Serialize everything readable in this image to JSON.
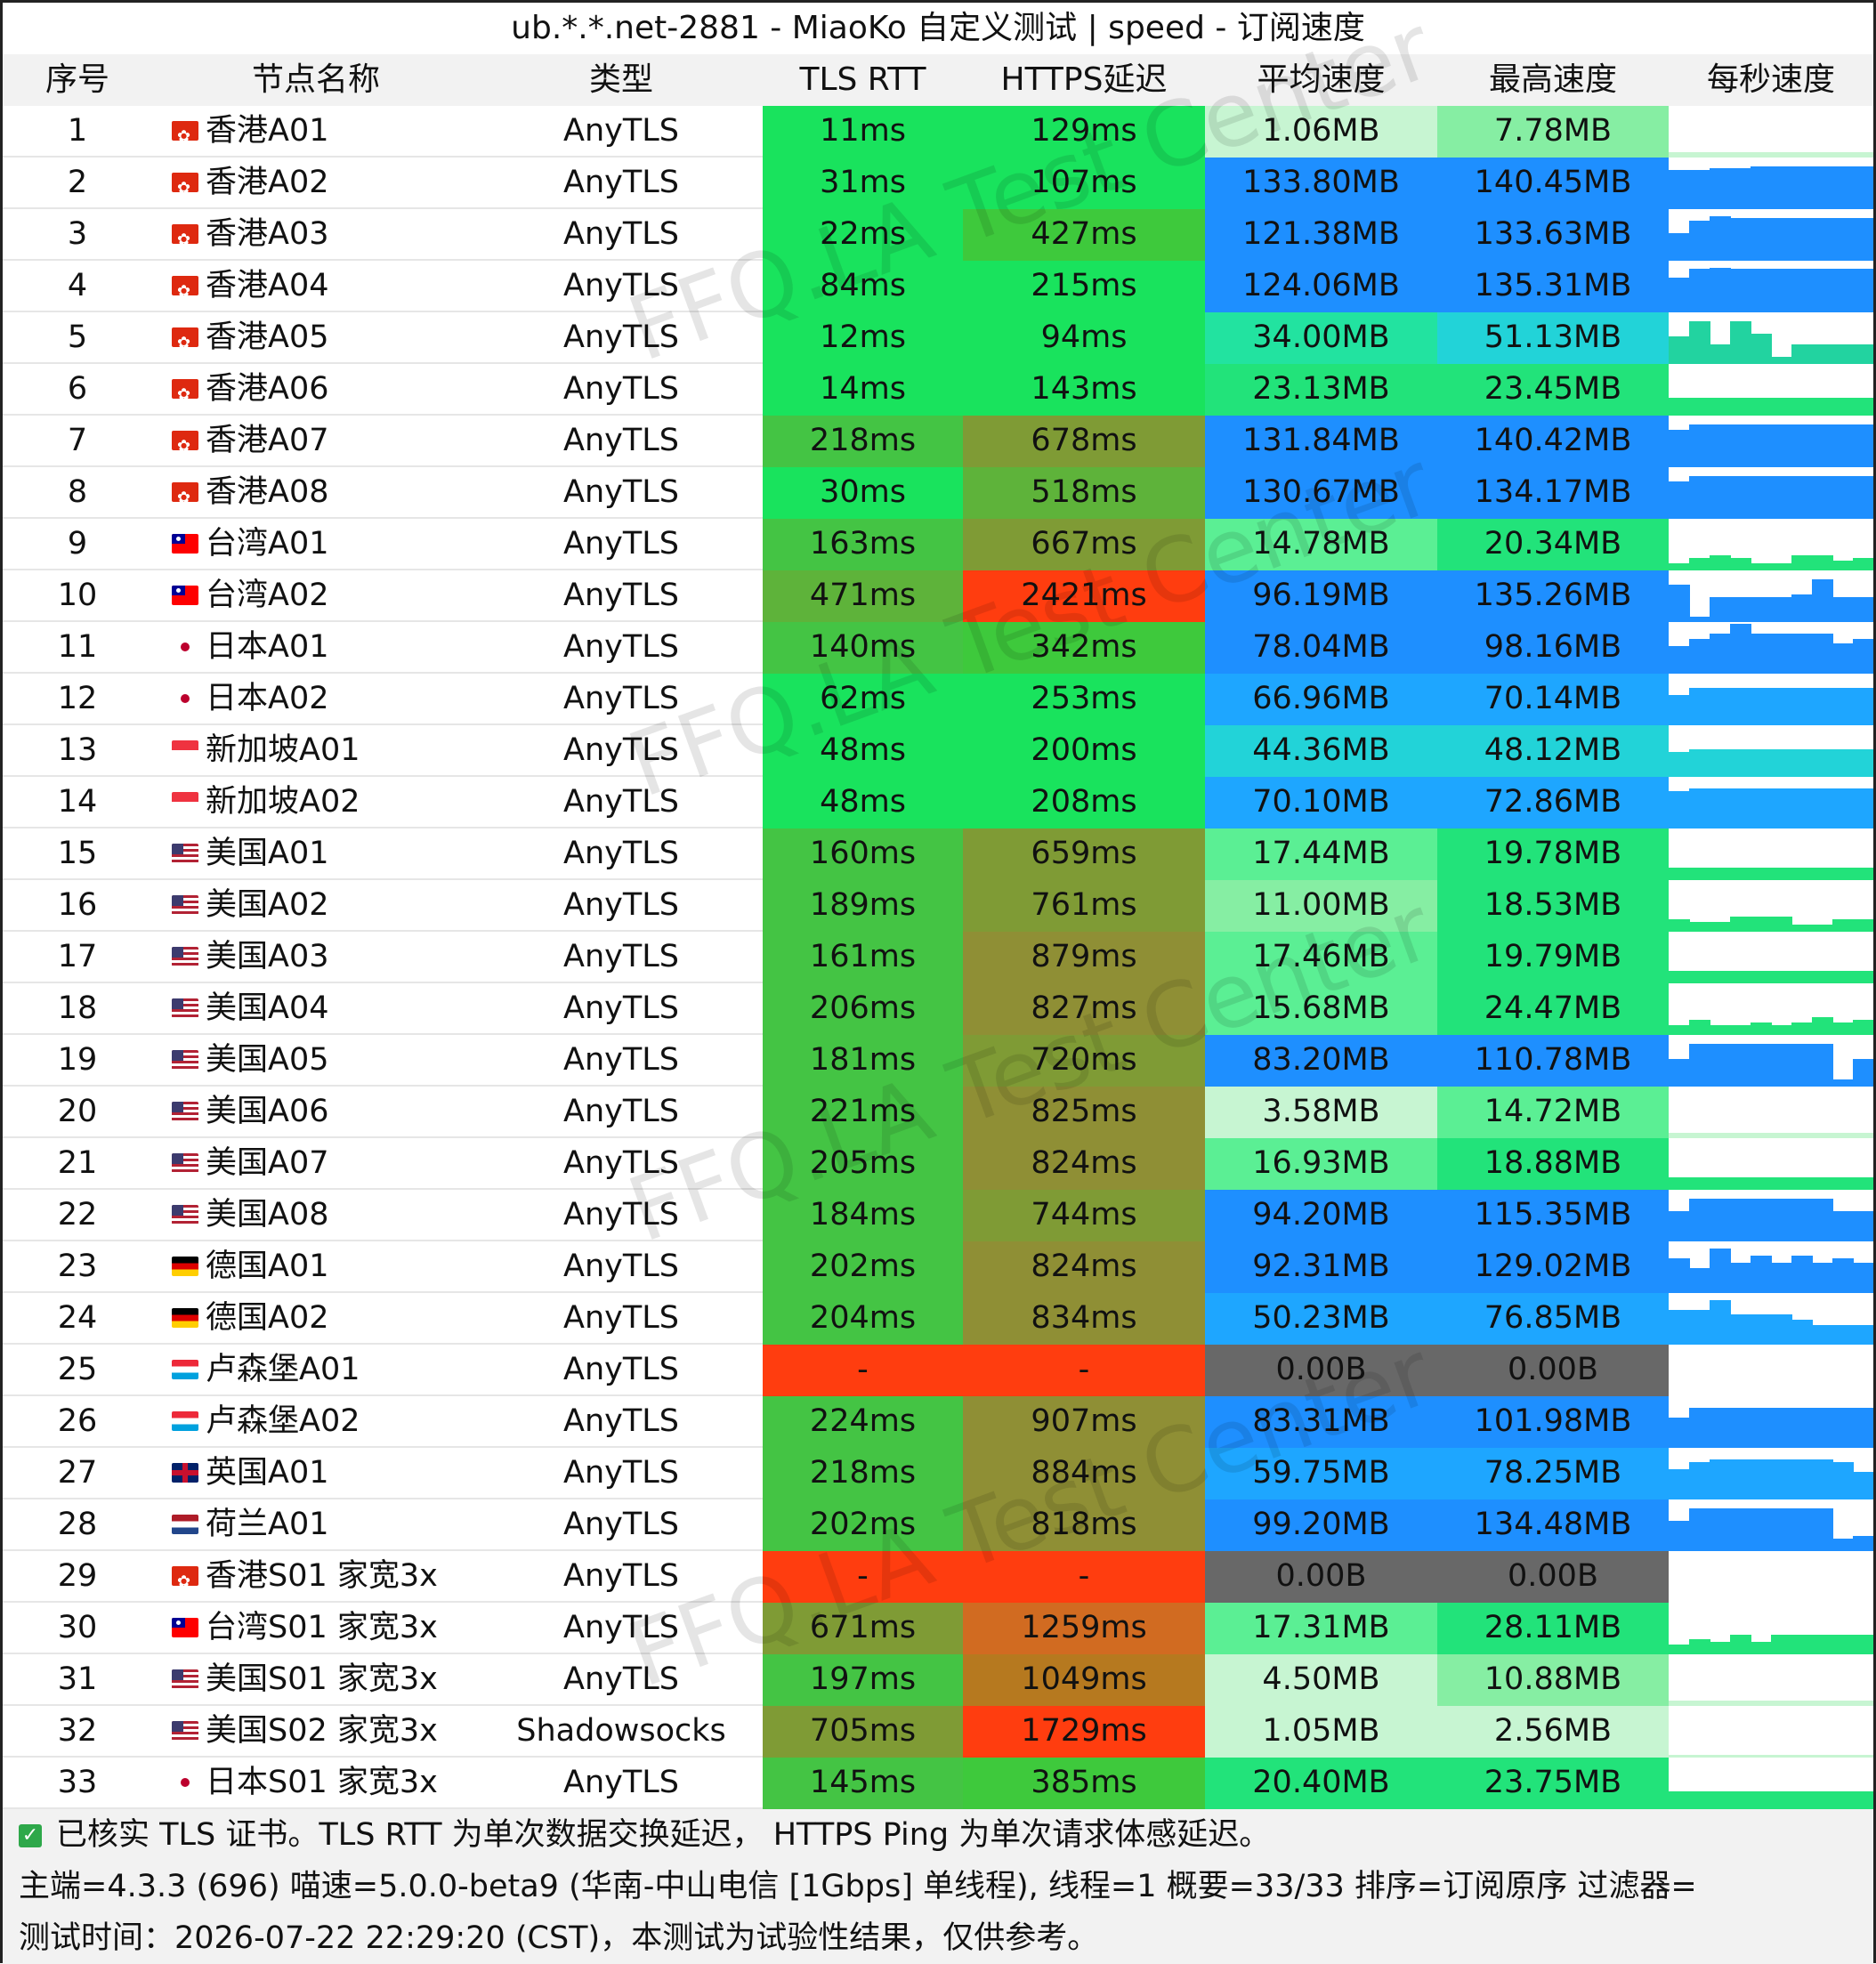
{
  "title": "ub.*.*.net-2881 - MiaoKo 自定义测试 | speed - 订阅速度",
  "columns": [
    "序号",
    "节点名称",
    "类型",
    "TLS RTT",
    "HTTPS延迟",
    "平均速度",
    "最高速度",
    "每秒速度"
  ],
  "rows": [
    {
      "idx": "1",
      "flag": "hk",
      "name": "香港A01",
      "type": "AnyTLS",
      "rtt": "11ms",
      "ping": "129ms",
      "avg": "1.06MB",
      "max": "7.78MB",
      "rtt_color": "#19e35d",
      "ping_color": "#19e35d",
      "avg_color": "#c7f5d2",
      "max_color": "#86eea3",
      "spark": [
        0.1,
        0.1,
        0.1,
        0.1,
        0.1,
        0.1,
        0.1,
        0.1,
        0.1,
        0.1
      ],
      "spark_color": "#c7f5d2"
    },
    {
      "idx": "2",
      "flag": "hk",
      "name": "香港A02",
      "type": "AnyTLS",
      "rtt": "31ms",
      "ping": "107ms",
      "avg": "133.80MB",
      "max": "140.45MB",
      "rtt_color": "#19e35d",
      "ping_color": "#19e35d",
      "avg_color": "#1e8fff",
      "max_color": "#1e8fff",
      "spark": [
        0.78,
        0.78,
        0.82,
        0.82,
        0.85,
        0.85,
        0.85,
        0.85,
        0.85,
        0.85
      ],
      "spark_color": "#1e8fff"
    },
    {
      "idx": "3",
      "flag": "hk",
      "name": "香港A03",
      "type": "AnyTLS",
      "rtt": "22ms",
      "ping": "427ms",
      "avg": "121.38MB",
      "max": "133.63MB",
      "rtt_color": "#19e35d",
      "ping_color": "#3ec93c",
      "avg_color": "#1e8fff",
      "max_color": "#1e8fff",
      "spark": [
        0.55,
        0.8,
        0.9,
        0.85,
        0.85,
        0.85,
        0.85,
        0.85,
        0.85,
        0.85
      ],
      "spark_color": "#1e8fff"
    },
    {
      "idx": "4",
      "flag": "hk",
      "name": "香港A04",
      "type": "AnyTLS",
      "rtt": "84ms",
      "ping": "215ms",
      "avg": "124.06MB",
      "max": "135.31MB",
      "rtt_color": "#19e35d",
      "ping_color": "#19e35d",
      "avg_color": "#1e8fff",
      "max_color": "#1e8fff",
      "spark": [
        0.7,
        0.88,
        0.9,
        0.88,
        0.88,
        0.88,
        0.88,
        0.88,
        0.88,
        0.88
      ],
      "spark_color": "#1e8fff"
    },
    {
      "idx": "5",
      "flag": "hk",
      "name": "香港A05",
      "type": "AnyTLS",
      "rtt": "12ms",
      "ping": "94ms",
      "avg": "34.00MB",
      "max": "51.13MB",
      "rtt_color": "#19e35d",
      "ping_color": "#19e35d",
      "avg_color": "#22e3a0",
      "max_color": "#22d3d8",
      "spark": [
        0.55,
        0.85,
        0.4,
        0.85,
        0.6,
        0.15,
        0.4,
        0.4,
        0.4,
        0.4
      ],
      "spark_color": "#22d3a0"
    },
    {
      "idx": "6",
      "flag": "hk",
      "name": "香港A06",
      "type": "AnyTLS",
      "rtt": "14ms",
      "ping": "143ms",
      "avg": "23.13MB",
      "max": "23.45MB",
      "rtt_color": "#19e35d",
      "ping_color": "#19e35d",
      "avg_color": "#22e37a",
      "max_color": "#22e37a",
      "spark": [
        0.35,
        0.35,
        0.35,
        0.35,
        0.35,
        0.35,
        0.35,
        0.35,
        0.35,
        0.35
      ],
      "spark_color": "#22e37a"
    },
    {
      "idx": "7",
      "flag": "hk",
      "name": "香港A07",
      "type": "AnyTLS",
      "rtt": "218ms",
      "ping": "678ms",
      "avg": "131.84MB",
      "max": "140.42MB",
      "rtt_color": "#44c444",
      "ping_color": "#7f9b35",
      "avg_color": "#1e8fff",
      "max_color": "#1e8fff",
      "spark": [
        0.75,
        0.85,
        0.85,
        0.85,
        0.85,
        0.85,
        0.85,
        0.85,
        0.85,
        0.85
      ],
      "spark_color": "#1e8fff"
    },
    {
      "idx": "8",
      "flag": "hk",
      "name": "香港A08",
      "type": "AnyTLS",
      "rtt": "30ms",
      "ping": "518ms",
      "avg": "130.67MB",
      "max": "134.17MB",
      "rtt_color": "#19e35d",
      "ping_color": "#5eb33a",
      "avg_color": "#1e8fff",
      "max_color": "#1e8fff",
      "spark": [
        0.75,
        0.85,
        0.85,
        0.85,
        0.85,
        0.85,
        0.85,
        0.85,
        0.85,
        0.85
      ],
      "spark_color": "#1e8fff"
    },
    {
      "idx": "9",
      "flag": "tw",
      "name": "台湾A01",
      "type": "AnyTLS",
      "rtt": "163ms",
      "ping": "667ms",
      "avg": "14.78MB",
      "max": "20.34MB",
      "rtt_color": "#44c444",
      "ping_color": "#7f9b35",
      "avg_color": "#5bef94",
      "max_color": "#22e37a",
      "spark": [
        0.15,
        0.25,
        0.3,
        0.25,
        0.15,
        0.15,
        0.3,
        0.3,
        0.2,
        0.25
      ],
      "spark_color": "#22e37a"
    },
    {
      "idx": "10",
      "flag": "tw",
      "name": "台湾A02",
      "type": "AnyTLS",
      "rtt": "471ms",
      "ping": "2421ms",
      "avg": "96.19MB",
      "max": "135.26MB",
      "rtt_color": "#5eb33a",
      "ping_color": "#ff3d0f",
      "avg_color": "#1e8fff",
      "max_color": "#1e8fff",
      "spark": [
        0.75,
        0.1,
        0.5,
        0.5,
        0.5,
        0.5,
        0.55,
        0.85,
        0.5,
        0.5
      ],
      "spark_color": "#1e8fff"
    },
    {
      "idx": "11",
      "flag": "jp",
      "name": "日本A01",
      "type": "AnyTLS",
      "rtt": "140ms",
      "ping": "342ms",
      "avg": "78.04MB",
      "max": "98.16MB",
      "rtt_color": "#44c444",
      "ping_color": "#3ec93c",
      "avg_color": "#1e8fff",
      "max_color": "#1e8fff",
      "spark": [
        0.55,
        0.7,
        0.8,
        1.0,
        0.8,
        0.8,
        0.8,
        0.8,
        0.6,
        0.7
      ],
      "spark_color": "#1e8fff"
    },
    {
      "idx": "12",
      "flag": "jp",
      "name": "日本A02",
      "type": "AnyTLS",
      "rtt": "62ms",
      "ping": "253ms",
      "avg": "66.96MB",
      "max": "70.14MB",
      "rtt_color": "#19e35d",
      "ping_color": "#19e35d",
      "avg_color": "#1ea6ff",
      "max_color": "#1ea6ff",
      "spark": [
        0.6,
        0.75,
        0.75,
        0.75,
        0.75,
        0.75,
        0.75,
        0.75,
        0.75,
        0.75
      ],
      "spark_color": "#1ea6ff"
    },
    {
      "idx": "13",
      "flag": "sg",
      "name": "新加坡A01",
      "type": "AnyTLS",
      "rtt": "48ms",
      "ping": "200ms",
      "avg": "44.36MB",
      "max": "48.12MB",
      "rtt_color": "#19e35d",
      "ping_color": "#19e35d",
      "avg_color": "#22d3d8",
      "max_color": "#22d3d8",
      "spark": [
        0.5,
        0.55,
        0.55,
        0.55,
        0.55,
        0.55,
        0.55,
        0.55,
        0.55,
        0.55
      ],
      "spark_color": "#22d3d8"
    },
    {
      "idx": "14",
      "flag": "sg",
      "name": "新加坡A02",
      "type": "AnyTLS",
      "rtt": "48ms",
      "ping": "208ms",
      "avg": "70.10MB",
      "max": "72.86MB",
      "rtt_color": "#19e35d",
      "ping_color": "#19e35d",
      "avg_color": "#1ea6ff",
      "max_color": "#1ea6ff",
      "spark": [
        0.75,
        0.8,
        0.8,
        0.8,
        0.8,
        0.8,
        0.8,
        0.8,
        0.8,
        0.8
      ],
      "spark_color": "#1ea6ff"
    },
    {
      "idx": "15",
      "flag": "us",
      "name": "美国A01",
      "type": "AnyTLS",
      "rtt": "160ms",
      "ping": "659ms",
      "avg": "17.44MB",
      "max": "19.78MB",
      "rtt_color": "#44c444",
      "ping_color": "#7f9b35",
      "avg_color": "#5bef94",
      "max_color": "#22e37a",
      "spark": [
        0.25,
        0.25,
        0.25,
        0.25,
        0.25,
        0.25,
        0.25,
        0.25,
        0.25,
        0.25
      ],
      "spark_color": "#22e37a"
    },
    {
      "idx": "16",
      "flag": "us",
      "name": "美国A02",
      "type": "AnyTLS",
      "rtt": "189ms",
      "ping": "761ms",
      "avg": "11.00MB",
      "max": "18.53MB",
      "rtt_color": "#44c444",
      "ping_color": "#7f9b35",
      "avg_color": "#86eea3",
      "max_color": "#22e37a",
      "spark": [
        0.25,
        0.2,
        0.2,
        0.3,
        0.3,
        0.3,
        0.15,
        0.15,
        0.25,
        0.25
      ],
      "spark_color": "#22e37a"
    },
    {
      "idx": "17",
      "flag": "us",
      "name": "美国A03",
      "type": "AnyTLS",
      "rtt": "161ms",
      "ping": "879ms",
      "avg": "17.46MB",
      "max": "19.79MB",
      "rtt_color": "#44c444",
      "ping_color": "#8f8f35",
      "avg_color": "#5bef94",
      "max_color": "#22e37a",
      "spark": [
        0.25,
        0.25,
        0.25,
        0.25,
        0.25,
        0.25,
        0.25,
        0.25,
        0.25,
        0.25
      ],
      "spark_color": "#22e37a"
    },
    {
      "idx": "18",
      "flag": "us",
      "name": "美国A04",
      "type": "AnyTLS",
      "rtt": "206ms",
      "ping": "827ms",
      "avg": "15.68MB",
      "max": "24.47MB",
      "rtt_color": "#44c444",
      "ping_color": "#8f8f35",
      "avg_color": "#5bef94",
      "max_color": "#22e37a",
      "spark": [
        0.2,
        0.3,
        0.2,
        0.2,
        0.25,
        0.2,
        0.25,
        0.35,
        0.25,
        0.3
      ],
      "spark_color": "#22e37a"
    },
    {
      "idx": "19",
      "flag": "us",
      "name": "美国A05",
      "type": "AnyTLS",
      "rtt": "181ms",
      "ping": "720ms",
      "avg": "83.20MB",
      "max": "110.78MB",
      "rtt_color": "#44c444",
      "ping_color": "#7f9b35",
      "avg_color": "#1e8fff",
      "max_color": "#1e8fff",
      "spark": [
        0.55,
        0.85,
        0.85,
        0.85,
        0.85,
        0.85,
        0.85,
        0.85,
        0.15,
        0.55
      ],
      "spark_color": "#1e8fff"
    },
    {
      "idx": "20",
      "flag": "us",
      "name": "美国A06",
      "type": "AnyTLS",
      "rtt": "221ms",
      "ping": "825ms",
      "avg": "3.58MB",
      "max": "14.72MB",
      "rtt_color": "#44c444",
      "ping_color": "#8f8f35",
      "avg_color": "#c7f5d2",
      "max_color": "#5bef94",
      "spark": [
        0.1,
        0.1,
        0.1,
        0.1,
        0.1,
        0.1,
        0.1,
        0.1,
        0.1,
        0.1
      ],
      "spark_color": "#c7f5d2"
    },
    {
      "idx": "21",
      "flag": "us",
      "name": "美国A07",
      "type": "AnyTLS",
      "rtt": "205ms",
      "ping": "824ms",
      "avg": "16.93MB",
      "max": "18.88MB",
      "rtt_color": "#44c444",
      "ping_color": "#8f8f35",
      "avg_color": "#5bef94",
      "max_color": "#22e37a",
      "spark": [
        0.25,
        0.25,
        0.25,
        0.25,
        0.25,
        0.25,
        0.25,
        0.25,
        0.25,
        0.25
      ],
      "spark_color": "#22e37a"
    },
    {
      "idx": "22",
      "flag": "us",
      "name": "美国A08",
      "type": "AnyTLS",
      "rtt": "184ms",
      "ping": "744ms",
      "avg": "94.20MB",
      "max": "115.35MB",
      "rtt_color": "#44c444",
      "ping_color": "#7f9b35",
      "avg_color": "#1e8fff",
      "max_color": "#1e8fff",
      "spark": [
        0.6,
        0.85,
        0.85,
        0.85,
        0.85,
        0.85,
        0.85,
        0.85,
        0.6,
        0.6
      ],
      "spark_color": "#1e8fff"
    },
    {
      "idx": "23",
      "flag": "de",
      "name": "德国A01",
      "type": "AnyTLS",
      "rtt": "202ms",
      "ping": "824ms",
      "avg": "92.31MB",
      "max": "129.02MB",
      "rtt_color": "#44c444",
      "ping_color": "#8f8f35",
      "avg_color": "#1e8fff",
      "max_color": "#1e8fff",
      "spark": [
        0.7,
        0.5,
        0.9,
        0.6,
        0.75,
        0.6,
        0.75,
        0.6,
        0.7,
        0.6
      ],
      "spark_color": "#1e8fff"
    },
    {
      "idx": "24",
      "flag": "de",
      "name": "德国A02",
      "type": "AnyTLS",
      "rtt": "204ms",
      "ping": "834ms",
      "avg": "50.23MB",
      "max": "76.85MB",
      "rtt_color": "#44c444",
      "ping_color": "#8f8f35",
      "avg_color": "#1ea6ff",
      "max_color": "#1ea6ff",
      "spark": [
        0.7,
        0.7,
        0.9,
        0.6,
        0.6,
        0.6,
        0.5,
        0.4,
        0.4,
        0.4
      ],
      "spark_color": "#1ea6ff"
    },
    {
      "idx": "25",
      "flag": "lu",
      "name": "卢森堡A01",
      "type": "AnyTLS",
      "rtt": "-",
      "ping": "-",
      "avg": "0.00B",
      "max": "0.00B",
      "rtt_color": "#ff3d0f",
      "ping_color": "#ff3d0f",
      "avg_color": "#686868",
      "max_color": "#686868",
      "spark": [],
      "spark_color": "#ffffff"
    },
    {
      "idx": "26",
      "flag": "lu",
      "name": "卢森堡A02",
      "type": "AnyTLS",
      "rtt": "224ms",
      "ping": "907ms",
      "avg": "83.31MB",
      "max": "101.98MB",
      "rtt_color": "#44c444",
      "ping_color": "#8f8f35",
      "avg_color": "#1e8fff",
      "max_color": "#1e8fff",
      "spark": [
        0.6,
        0.8,
        0.8,
        0.8,
        0.8,
        0.8,
        0.8,
        0.8,
        0.8,
        0.8
      ],
      "spark_color": "#1e8fff"
    },
    {
      "idx": "27",
      "flag": "gb",
      "name": "英国A01",
      "type": "AnyTLS",
      "rtt": "218ms",
      "ping": "884ms",
      "avg": "59.75MB",
      "max": "78.25MB",
      "rtt_color": "#44c444",
      "ping_color": "#8f8f35",
      "avg_color": "#1ea6ff",
      "max_color": "#1ea6ff",
      "spark": [
        0.6,
        0.75,
        0.8,
        0.8,
        0.8,
        0.8,
        0.8,
        0.8,
        0.75,
        0.55
      ],
      "spark_color": "#1ea6ff"
    },
    {
      "idx": "28",
      "flag": "nl",
      "name": "荷兰A01",
      "type": "AnyTLS",
      "rtt": "202ms",
      "ping": "818ms",
      "avg": "99.20MB",
      "max": "134.48MB",
      "rtt_color": "#44c444",
      "ping_color": "#8f8f35",
      "avg_color": "#1e8fff",
      "max_color": "#1e8fff",
      "spark": [
        0.6,
        0.85,
        0.85,
        0.85,
        0.85,
        0.85,
        0.85,
        0.85,
        0.25,
        0.3
      ],
      "spark_color": "#1e8fff"
    },
    {
      "idx": "29",
      "flag": "hk",
      "name": "香港S01 家宽3x",
      "type": "AnyTLS",
      "rtt": "-",
      "ping": "-",
      "avg": "0.00B",
      "max": "0.00B",
      "rtt_color": "#ff3d0f",
      "ping_color": "#ff3d0f",
      "avg_color": "#686868",
      "max_color": "#686868",
      "spark": [],
      "spark_color": "#ffffff"
    },
    {
      "idx": "30",
      "flag": "tw",
      "name": "台湾S01 家宽3x",
      "type": "AnyTLS",
      "rtt": "671ms",
      "ping": "1259ms",
      "avg": "17.31MB",
      "max": "28.11MB",
      "rtt_color": "#7f9b35",
      "ping_color": "#d16b21",
      "avg_color": "#5bef94",
      "max_color": "#22e37a",
      "spark": [
        0.2,
        0.3,
        0.25,
        0.4,
        0.25,
        0.4,
        0.4,
        0.4,
        0.4,
        0.4
      ],
      "spark_color": "#22e37a"
    },
    {
      "idx": "31",
      "flag": "us",
      "name": "美国S01 家宽3x",
      "type": "AnyTLS",
      "rtt": "197ms",
      "ping": "1049ms",
      "avg": "4.50MB",
      "max": "10.88MB",
      "rtt_color": "#44c444",
      "ping_color": "#b6791f",
      "avg_color": "#c7f5d2",
      "max_color": "#86eea3",
      "spark": [
        0.1,
        0.1,
        0.1,
        0.1,
        0.1,
        0.1,
        0.1,
        0.1,
        0.1,
        0.1
      ],
      "spark_color": "#c7f5d2"
    },
    {
      "idx": "32",
      "flag": "us",
      "name": "美国S02 家宽3x",
      "type": "Shadowsocks",
      "rtt": "705ms",
      "ping": "1729ms",
      "avg": "1.05MB",
      "max": "2.56MB",
      "rtt_color": "#7f9b35",
      "ping_color": "#ff3d0f",
      "avg_color": "#c7f5d2",
      "max_color": "#c7f5d2",
      "spark": [
        0.05,
        0.05,
        0.05,
        0.05,
        0.05,
        0.05,
        0.05,
        0.05,
        0.05,
        0.05
      ],
      "spark_color": "#c7f5d2"
    },
    {
      "idx": "33",
      "flag": "jp",
      "name": "日本S01 家宽3x",
      "type": "AnyTLS",
      "rtt": "145ms",
      "ping": "385ms",
      "avg": "20.40MB",
      "max": "23.75MB",
      "rtt_color": "#44c444",
      "ping_color": "#3ec93c",
      "avg_color": "#22e37a",
      "max_color": "#22e37a",
      "spark": [
        0.35,
        0.35,
        0.35,
        0.35,
        0.35,
        0.35,
        0.35,
        0.35,
        0.35,
        0.35
      ],
      "spark_color": "#22e37a"
    }
  ],
  "footer": {
    "line1": "已核实 TLS 证书。TLS RTT 为单次数据交换延迟， HTTPS Ping 为单次请求体感延迟。",
    "line2": "主端=4.3.3 (696) 喵速=5.0.0-beta9 (华南-中山电信 [1Gbps] 单线程), 线程=1 概要=33/33 排序=订阅原序 过滤器=",
    "line3": "测试时间：2026-07-22 22:29:20 (CST)，本测试为试验性结果，仅供参考。"
  },
  "watermark": "FFQ.LA Test Center"
}
